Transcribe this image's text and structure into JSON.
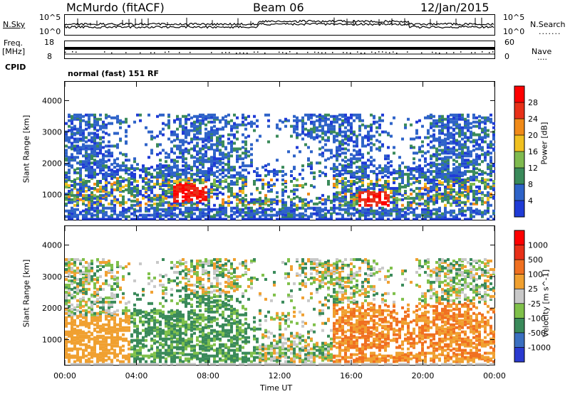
{
  "header": {
    "station": "McMurdo (fitACF)",
    "beam": "Beam 06",
    "date": "12/Jan/2015"
  },
  "noise_panel": {
    "left_label": "N.Sky",
    "right_label": "N.Search",
    "left_ticks": [
      "10^5",
      "10^0"
    ],
    "right_ticks": [
      "10^5",
      "10^0"
    ]
  },
  "freq_panel": {
    "left_label_top": "Freq.",
    "left_label_bottom": "[MHz]",
    "left_ticks": [
      "18",
      "8"
    ],
    "right_label": "Nave",
    "right_ticks": [
      "60",
      "0"
    ]
  },
  "cpid": {
    "label": "CPID",
    "value": "normal (fast) 151 RF"
  },
  "chart_data": [
    {
      "type": "heatmap",
      "title": "",
      "xlabel": "",
      "ylabel": "Slant Range [km]",
      "x_ticks": [
        "00:00",
        "04:00",
        "08:00",
        "12:00",
        "16:00",
        "20:00",
        "00:00"
      ],
      "y_ticks": [
        1000,
        2000,
        3000,
        4000
      ],
      "ylim": [
        200,
        4600
      ],
      "colorbar": {
        "label": "Power [dB]",
        "ticks": [
          "4",
          "8",
          "12",
          "16",
          "20",
          "24",
          "28"
        ],
        "colors": [
          "#1f3bd6",
          "#2e63c8",
          "#3a8a5a",
          "#7fba4f",
          "#f0c020",
          "#f08a18",
          "#e83018",
          "#ff0000"
        ]
      }
    },
    {
      "type": "heatmap",
      "title": "",
      "xlabel": "Time UT",
      "ylabel": "Slant Range [km]",
      "x_ticks": [
        "00:00",
        "04:00",
        "08:00",
        "12:00",
        "16:00",
        "20:00",
        "00:00"
      ],
      "y_ticks": [
        1000,
        2000,
        3000,
        4000
      ],
      "ylim": [
        200,
        4600
      ],
      "colorbar": {
        "label": "Velocity [m s^-1]",
        "ticks": [
          "1000",
          "500",
          "100",
          "25",
          "-25",
          "-100",
          "-500",
          "-1000"
        ],
        "colors": [
          "#2a3ad0",
          "#3a6fc0",
          "#3a8a5a",
          "#7fc04a",
          "#c8c8c8",
          "#f0a030",
          "#f07020",
          "#e83018",
          "#ff0000"
        ]
      }
    }
  ]
}
